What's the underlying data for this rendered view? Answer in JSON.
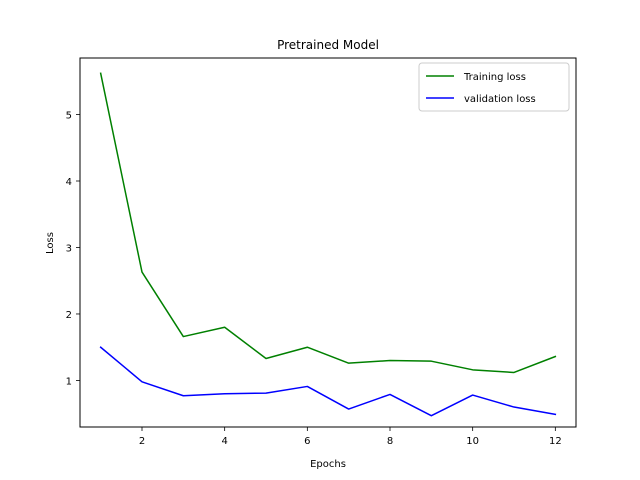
{
  "chart_data": {
    "type": "line",
    "title": "Pretrained Model",
    "xlabel": "Epochs",
    "ylabel": "Loss",
    "x": [
      1,
      2,
      3,
      4,
      5,
      6,
      7,
      8,
      9,
      10,
      11,
      12
    ],
    "xlim": [
      0.5,
      12.5
    ],
    "ylim": [
      0.3,
      5.85
    ],
    "xticks": [
      2,
      4,
      6,
      8,
      10,
      12
    ],
    "yticks": [
      1,
      2,
      3,
      4,
      5
    ],
    "grid": false,
    "legend": "top-right",
    "series": [
      {
        "name": "Training loss",
        "color": "#008000",
        "values": [
          5.62,
          2.63,
          1.66,
          1.8,
          1.33,
          1.5,
          1.26,
          1.3,
          1.29,
          1.16,
          1.12,
          1.36
        ]
      },
      {
        "name": "validation loss",
        "color": "#0000ff",
        "values": [
          1.5,
          0.98,
          0.77,
          0.8,
          0.81,
          0.91,
          0.57,
          0.79,
          0.47,
          0.78,
          0.6,
          0.49
        ]
      }
    ]
  }
}
